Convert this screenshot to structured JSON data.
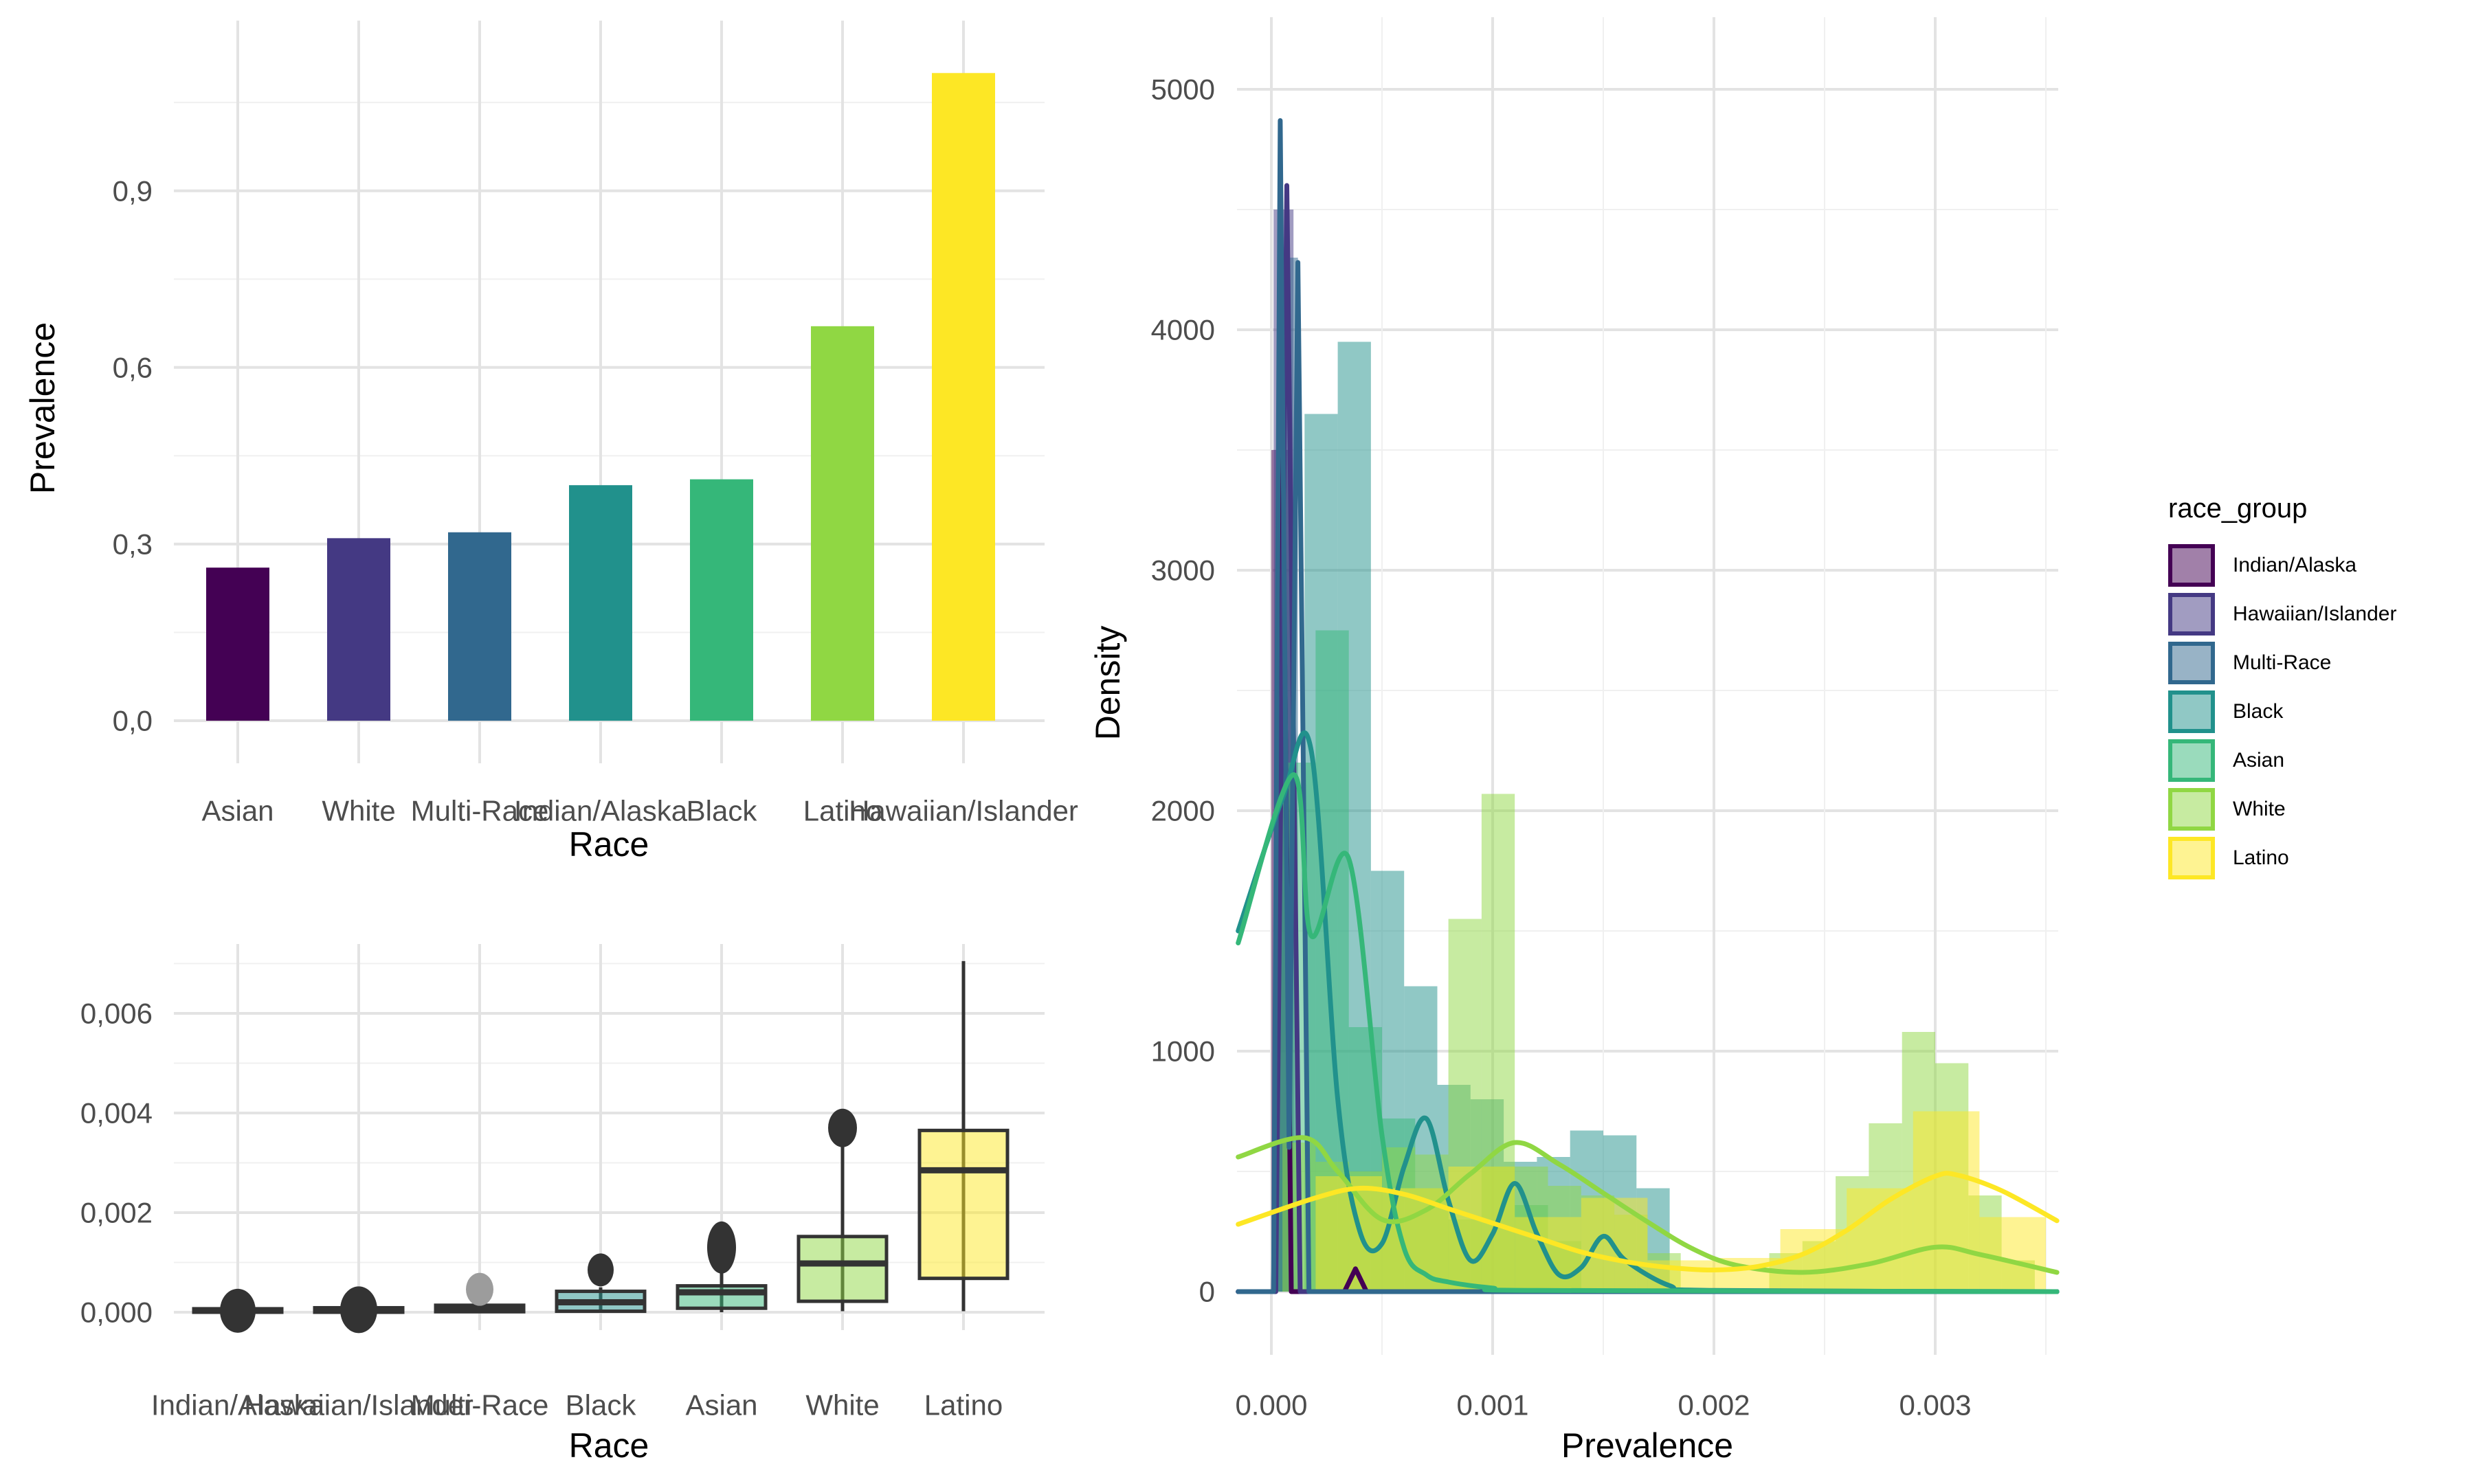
{
  "colors": {
    "background": "#FFFFFF",
    "grid_major": "#E3E3E3",
    "grid_minor": "#F0F0F0",
    "tick_label": "#4D4D4D",
    "axis_title": "#000000",
    "box_stroke": "#333333"
  },
  "legend": {
    "title": "race_group",
    "items": [
      {
        "label": "Indian/Alaska",
        "color": "#440154"
      },
      {
        "label": "Hawaiian/Islander",
        "color": "#443983"
      },
      {
        "label": "Multi-Race",
        "color": "#31688E"
      },
      {
        "label": "Black",
        "color": "#21918C"
      },
      {
        "label": "Asian",
        "color": "#35B779"
      },
      {
        "label": "White",
        "color": "#90D743"
      },
      {
        "label": "Latino",
        "color": "#FDE725"
      }
    ]
  },
  "chart_data": [
    {
      "id": "prevalence_by_race_bar",
      "type": "bar",
      "xlabel": "Race",
      "ylabel": "Prevalence",
      "categories": [
        "Asian",
        "White",
        "Multi-Race",
        "Indian/Alaska",
        "Black",
        "Latino",
        "Hawaiian/Islander"
      ],
      "values": [
        0.26,
        0.31,
        0.32,
        0.4,
        0.41,
        0.67,
        1.1
      ],
      "bar_colors": [
        "#440154",
        "#443983",
        "#31688E",
        "#21918C",
        "#35B779",
        "#90D743",
        "#FDE725"
      ],
      "y_ticks": [
        {
          "label": "0,0",
          "value": 0
        },
        {
          "label": "0,3",
          "value": 0.3
        },
        {
          "label": "0,6",
          "value": 0.6
        },
        {
          "label": "0,9",
          "value": 0.9
        }
      ],
      "ylim": [
        0,
        1.18
      ],
      "grid": true
    },
    {
      "id": "prevalence_by_race_boxplot",
      "type": "boxplot",
      "xlabel": "Race",
      "ylabel": "",
      "categories": [
        "Indian/Alaska",
        "Hawaiian/Islander",
        "Multi-Race",
        "Black",
        "Asian",
        "White",
        "Latino"
      ],
      "y_ticks": [
        {
          "label": "0,000",
          "value": 0
        },
        {
          "label": "0,002",
          "value": 0.002
        },
        {
          "label": "0,004",
          "value": 0.004
        },
        {
          "label": "0,006",
          "value": 0.006
        }
      ],
      "ylim": [
        -0.0004,
        0.0074
      ],
      "boxes": [
        {
          "group": "Indian/Alaska",
          "fill": "#440154",
          "q1": 0.0,
          "median": 3e-05,
          "q3": 7e-05,
          "whisker_low": 0.0,
          "whisker_high": 0.00012,
          "outliers": [
            {
              "value": 3e-05,
              "rx": 26,
              "ry": 32,
              "fill": "#333333"
            }
          ]
        },
        {
          "group": "Hawaiian/Islander",
          "fill": "#443983",
          "q1": 0.0,
          "median": 4e-05,
          "q3": 9e-05,
          "whisker_low": 0.0,
          "whisker_high": 0.00015,
          "outliers": [
            {
              "value": 5e-05,
              "rx": 27,
              "ry": 34,
              "fill": "#333333"
            }
          ]
        },
        {
          "group": "Multi-Race",
          "fill": "#31688E",
          "q1": 1e-05,
          "median": 7e-05,
          "q3": 0.00014,
          "whisker_low": 0.0,
          "whisker_high": 0.0002,
          "outliers": [
            {
              "value": 0.00046,
              "rx": 20,
              "ry": 24,
              "fill": "#9C9C9C"
            }
          ]
        },
        {
          "group": "Black",
          "fill": "#21918C",
          "q1": 2e-05,
          "median": 0.0002,
          "q3": 0.00042,
          "whisker_low": 0.0,
          "whisker_high": 0.0005,
          "outliers": [
            {
              "value": 0.00085,
              "rx": 19,
              "ry": 24,
              "fill": "#333333"
            }
          ]
        },
        {
          "group": "Asian",
          "fill": "#35B779",
          "q1": 8e-05,
          "median": 0.0004,
          "q3": 0.00053,
          "whisker_low": 0.0,
          "whisker_high": 0.0008,
          "outliers": [
            {
              "value": 0.0013,
              "rx": 21,
              "ry": 38,
              "fill": "#333333"
            }
          ]
        },
        {
          "group": "White",
          "fill": "#90D743",
          "q1": 0.00022,
          "median": 0.00098,
          "q3": 0.00152,
          "whisker_low": 2e-05,
          "whisker_high": 0.0034,
          "outliers": [
            {
              "value": 0.0037,
              "rx": 21,
              "ry": 28,
              "fill": "#333333"
            }
          ]
        },
        {
          "group": "Latino",
          "fill": "#FDE725",
          "q1": 0.00068,
          "median": 0.00285,
          "q3": 0.00365,
          "whisker_low": 2e-05,
          "whisker_high": 0.00705,
          "outliers": []
        }
      ]
    },
    {
      "id": "prevalence_density",
      "type": "histogram_density",
      "xlabel": "Prevalence",
      "ylabel": "Density",
      "x_ticks": [
        {
          "label": "0.000",
          "value": 0
        },
        {
          "label": "0.001",
          "value": 0.001
        },
        {
          "label": "0.002",
          "value": 0.002
        },
        {
          "label": "0.003",
          "value": 0.003
        }
      ],
      "y_ticks": [
        {
          "label": "0",
          "value": 0
        },
        {
          "label": "1000",
          "value": 1000
        },
        {
          "label": "2000",
          "value": 2000
        },
        {
          "label": "3000",
          "value": 3000
        },
        {
          "label": "4000",
          "value": 4000
        },
        {
          "label": "5000",
          "value": 5000
        }
      ],
      "xlim": [
        -0.000155,
        0.003555
      ],
      "ylim": [
        0,
        5280
      ],
      "hist_alpha": 0.5,
      "histograms": [
        {
          "group": "Indian/Alaska",
          "color": "#440154",
          "bars": [
            [
              0.0,
              9e-05,
              3500
            ]
          ]
        },
        {
          "group": "Hawaiian/Islander",
          "color": "#443983",
          "bars": [
            [
              1e-05,
              0.0001,
              4500
            ]
          ]
        },
        {
          "group": "Multi-Race",
          "color": "#31688E",
          "bars": [
            [
              3e-05,
              0.00012,
              4300
            ]
          ]
        },
        {
          "group": "Black",
          "color": "#21918C",
          "bars": [
            [
              0.00015,
              0.0003,
              3650
            ],
            [
              0.0003,
              0.00045,
              3950
            ],
            [
              0.00045,
              0.0006,
              1750
            ],
            [
              0.0006,
              0.00075,
              1270
            ],
            [
              0.00075,
              0.0009,
              860
            ],
            [
              0.0009,
              0.00105,
              800
            ],
            [
              0.00105,
              0.0012,
              540
            ],
            [
              0.0012,
              0.00135,
              560
            ],
            [
              0.00135,
              0.0015,
              670
            ],
            [
              0.0015,
              0.00165,
              650
            ],
            [
              0.00165,
              0.0018,
              430
            ]
          ]
        },
        {
          "group": "Asian",
          "color": "#35B779",
          "bars": [
            [
              2e-05,
              0.0002,
              2200
            ],
            [
              0.0002,
              0.00035,
              2750
            ],
            [
              0.00035,
              0.0005,
              1100
            ],
            [
              0.0005,
              0.00065,
              720
            ],
            [
              0.00065,
              0.0008,
              430
            ],
            [
              0.0008,
              0.00095,
              300
            ],
            [
              0.00095,
              0.0011,
              520
            ],
            [
              0.0011,
              0.00125,
              360
            ],
            [
              0.00125,
              0.0014,
              210
            ]
          ]
        },
        {
          "group": "White",
          "color": "#90D743",
          "bars": [
            [
              5e-05,
              0.0002,
              620
            ],
            [
              0.0002,
              0.00035,
              540
            ],
            [
              0.00035,
              0.0005,
              500
            ],
            [
              0.0005,
              0.00065,
              600
            ],
            [
              0.00065,
              0.0008,
              570
            ],
            [
              0.0008,
              0.00095,
              1550
            ],
            [
              0.00095,
              0.0011,
              2070
            ],
            [
              0.0011,
              0.00125,
              520
            ],
            [
              0.00125,
              0.0014,
              440
            ],
            [
              0.0014,
              0.00155,
              400
            ],
            [
              0.00155,
              0.0017,
              320
            ],
            [
              0.0017,
              0.00185,
              160
            ],
            [
              0.00225,
              0.0024,
              160
            ],
            [
              0.0024,
              0.00255,
              210
            ],
            [
              0.00255,
              0.0027,
              480
            ],
            [
              0.0027,
              0.00285,
              700
            ],
            [
              0.00285,
              0.003,
              1080
            ],
            [
              0.003,
              0.00315,
              950
            ],
            [
              0.00315,
              0.0033,
              400
            ],
            [
              0.0033,
              0.00345,
              130
            ]
          ]
        },
        {
          "group": "Latino",
          "color": "#FDE725",
          "bars": [
            [
              0.0002,
              0.0005,
              480
            ],
            [
              0.0005,
              0.0008,
              430
            ],
            [
              0.0008,
              0.0011,
              520
            ],
            [
              0.0011,
              0.0014,
              310
            ],
            [
              0.0014,
              0.0017,
              390
            ],
            [
              0.0017,
              0.002,
              130
            ],
            [
              0.002,
              0.0023,
              140
            ],
            [
              0.0023,
              0.0026,
              260
            ],
            [
              0.0026,
              0.0029,
              430
            ],
            [
              0.0029,
              0.0032,
              750
            ],
            [
              0.0032,
              0.0035,
              310
            ]
          ]
        }
      ],
      "curves": [
        {
          "group": "Indian/Alaska",
          "color": "#440154",
          "smooth": false,
          "points": [
            [
              -0.00015,
              0
            ],
            [
              1e-05,
              0
            ],
            [
              5e-05,
              3550
            ],
            [
              9e-05,
              0
            ],
            [
              0.00033,
              0
            ],
            [
              0.00038,
              95
            ],
            [
              0.00043,
              0
            ],
            [
              0.00355,
              0
            ]
          ]
        },
        {
          "group": "Hawaiian/Islander",
          "color": "#443983",
          "smooth": false,
          "points": [
            [
              -0.00015,
              0
            ],
            [
              2e-05,
              0
            ],
            [
              7e-05,
              4600
            ],
            [
              0.00013,
              0
            ],
            [
              0.00355,
              0
            ]
          ]
        },
        {
          "group": "Multi-Race",
          "color": "#31688E",
          "smooth": false,
          "points": [
            [
              -0.00015,
              0
            ],
            [
              1e-05,
              0
            ],
            [
              4e-05,
              4870
            ],
            [
              8e-05,
              600
            ],
            [
              0.00012,
              4280
            ],
            [
              0.00017,
              0
            ],
            [
              0.00355,
              0
            ]
          ]
        },
        {
          "group": "Black",
          "color": "#21918C",
          "smooth": true,
          "points": [
            [
              -0.00015,
              1500
            ],
            [
              5e-05,
              2050
            ],
            [
              0.00018,
              2250
            ],
            [
              0.0003,
              800
            ],
            [
              0.0004,
              250
            ],
            [
              0.0005,
              200
            ],
            [
              0.0006,
              520
            ],
            [
              0.0007,
              720
            ],
            [
              0.0008,
              380
            ],
            [
              0.0009,
              130
            ],
            [
              0.001,
              240
            ],
            [
              0.0011,
              450
            ],
            [
              0.0012,
              240
            ],
            [
              0.0013,
              70
            ],
            [
              0.0014,
              100
            ],
            [
              0.0015,
              230
            ],
            [
              0.0016,
              130
            ],
            [
              0.0018,
              25
            ],
            [
              0.002,
              5
            ],
            [
              0.00355,
              0
            ]
          ]
        },
        {
          "group": "Asian",
          "color": "#35B779",
          "smooth": true,
          "points": [
            [
              -0.00015,
              1450
            ],
            [
              0.0001,
              2150
            ],
            [
              0.00018,
              1480
            ],
            [
              0.00035,
              1800
            ],
            [
              0.0005,
              650
            ],
            [
              0.0006,
              180
            ],
            [
              0.0007,
              70
            ],
            [
              0.0008,
              40
            ],
            [
              0.001,
              15
            ],
            [
              0.0012,
              5
            ],
            [
              0.00355,
              0
            ]
          ]
        },
        {
          "group": "White",
          "color": "#90D743",
          "smooth": true,
          "points": [
            [
              -0.00015,
              560
            ],
            [
              0.00015,
              640
            ],
            [
              0.0003,
              500
            ],
            [
              0.0005,
              300
            ],
            [
              0.0007,
              340
            ],
            [
              0.0009,
              490
            ],
            [
              0.0011,
              620
            ],
            [
              0.0013,
              530
            ],
            [
              0.0015,
              410
            ],
            [
              0.0017,
              290
            ],
            [
              0.0019,
              180
            ],
            [
              0.0021,
              110
            ],
            [
              0.0024,
              80
            ],
            [
              0.0027,
              115
            ],
            [
              0.003,
              185
            ],
            [
              0.0032,
              155
            ],
            [
              0.00355,
              80
            ]
          ]
        },
        {
          "group": "Latino",
          "color": "#FDE725",
          "smooth": true,
          "points": [
            [
              -0.00015,
              280
            ],
            [
              0.0002,
              390
            ],
            [
              0.0004,
              430
            ],
            [
              0.0006,
              405
            ],
            [
              0.0008,
              345
            ],
            [
              0.001,
              285
            ],
            [
              0.0012,
              225
            ],
            [
              0.0014,
              165
            ],
            [
              0.0016,
              125
            ],
            [
              0.0018,
              100
            ],
            [
              0.002,
              90
            ],
            [
              0.0022,
              105
            ],
            [
              0.0024,
              155
            ],
            [
              0.0026,
              255
            ],
            [
              0.0028,
              385
            ],
            [
              0.003,
              480
            ],
            [
              0.0031,
              485
            ],
            [
              0.0033,
              420
            ],
            [
              0.00355,
              295
            ]
          ]
        }
      ]
    }
  ]
}
